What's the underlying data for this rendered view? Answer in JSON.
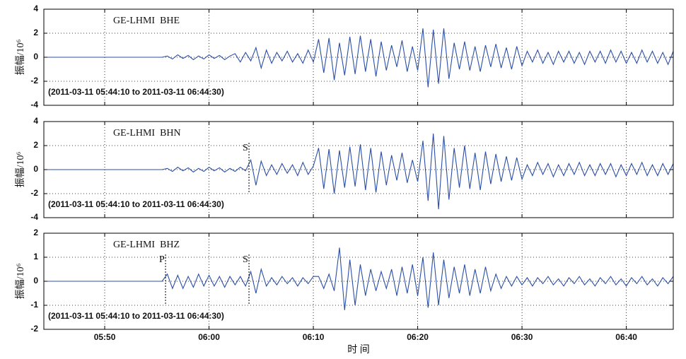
{
  "chart_data": [
    {
      "type": "line",
      "title": "GE-LHMI  BHE",
      "annotation": "(2011-03-11 05:44:10 to 2011-03-11 06:44:30)",
      "ylabel": "振幅/10⁶",
      "color": "#2b4fa6",
      "grid": true,
      "xlim": [
        44.1667,
        104.5
      ],
      "ylim": [
        -4,
        4
      ],
      "yticks": [
        -4,
        -2,
        0,
        2,
        4
      ],
      "xticks": [
        50,
        60,
        70,
        80,
        90,
        100
      ],
      "markers": [],
      "x": [
        44.5,
        45,
        45.5,
        46,
        46.5,
        47,
        47.5,
        48,
        48.5,
        49,
        49.5,
        50,
        50.5,
        51,
        51.5,
        52,
        52.5,
        53,
        53.5,
        54,
        54.5,
        55,
        55.5,
        56,
        56.5,
        57,
        57.5,
        58,
        58.5,
        59,
        59.5,
        60,
        60.5,
        61,
        61.5,
        62,
        62.5,
        63,
        63.5,
        64,
        64.5,
        65,
        65.5,
        66,
        66.5,
        67,
        67.5,
        68,
        68.5,
        69,
        69.5,
        70,
        70.5,
        71,
        71.5,
        72,
        72.5,
        73,
        73.5,
        74,
        74.5,
        75,
        75.5,
        76,
        76.5,
        77,
        77.5,
        78,
        78.5,
        79,
        79.5,
        80,
        80.5,
        81,
        81.5,
        82,
        82.5,
        83,
        83.5,
        84,
        84.5,
        85,
        85.5,
        86,
        86.5,
        87,
        87.5,
        88,
        88.5,
        89,
        89.5,
        90,
        90.5,
        91,
        91.5,
        92,
        92.5,
        93,
        93.5,
        94,
        94.5,
        95,
        95.5,
        96,
        96.5,
        97,
        97.5,
        98,
        98.5,
        99,
        99.5,
        100,
        100.5,
        101,
        101.5,
        102,
        102.5,
        103,
        103.5,
        104,
        104.5
      ],
      "values": [
        0,
        0,
        0,
        0,
        0,
        0,
        0,
        0,
        0,
        0,
        0,
        0,
        0,
        0,
        0,
        0,
        0,
        0,
        0,
        0,
        0,
        0,
        0,
        0.1,
        -0.15,
        0.2,
        -0.1,
        0.15,
        -0.2,
        0.1,
        -0.15,
        0.2,
        -0.1,
        0.15,
        -0.2,
        0.1,
        0.3,
        -0.4,
        0.4,
        -0.3,
        0.8,
        -0.9,
        0.6,
        -0.5,
        0.4,
        -0.3,
        0.5,
        -0.4,
        0.3,
        -0.5,
        0.6,
        -0.4,
        1.5,
        -1.3,
        1.6,
        -1.9,
        1.2,
        -1.5,
        1.7,
        -1.4,
        1.8,
        -1.2,
        1.5,
        -1.6,
        1.3,
        -1.1,
        1.0,
        -0.8,
        1.4,
        -1.2,
        0.9,
        -1.1,
        2.4,
        -2.5,
        2.3,
        -2.2,
        2.4,
        -1.8,
        1.2,
        -1.0,
        1.3,
        -1.1,
        0.9,
        -1.2,
        1.0,
        -0.8,
        1.1,
        -0.9,
        0.8,
        -1.0,
        0.9,
        -0.7,
        0.5,
        -0.4,
        0.6,
        -0.5,
        0.4,
        -0.6,
        0.5,
        -0.4,
        0.5,
        -0.5,
        0.4,
        -0.6,
        0.5,
        -0.4,
        0.5,
        -0.5,
        0.6,
        -0.4,
        0.5,
        -0.5,
        0.4,
        -0.5,
        0.6,
        -0.4,
        0.5,
        -0.5,
        0.4,
        -0.6,
        0.5
      ]
    },
    {
      "type": "line",
      "title": "GE-LHMI  BHN",
      "annotation": "(2011-03-11 05:44:10 to 2011-03-11 06:44:30)",
      "ylabel": "振幅/10⁶",
      "color": "#2b4fa6",
      "grid": true,
      "xlim": [
        44.1667,
        104.5
      ],
      "ylim": [
        -4,
        4
      ],
      "yticks": [
        -4,
        -2,
        0,
        2,
        4
      ],
      "xticks": [
        50,
        60,
        70,
        80,
        90,
        100
      ],
      "markers": [
        {
          "label": "S",
          "x": 63.83
        }
      ],
      "x": [
        44.5,
        45,
        45.5,
        46,
        46.5,
        47,
        47.5,
        48,
        48.5,
        49,
        49.5,
        50,
        50.5,
        51,
        51.5,
        52,
        52.5,
        53,
        53.5,
        54,
        54.5,
        55,
        55.5,
        56,
        56.5,
        57,
        57.5,
        58,
        58.5,
        59,
        59.5,
        60,
        60.5,
        61,
        61.5,
        62,
        62.5,
        63,
        63.5,
        64,
        64.5,
        65,
        65.5,
        66,
        66.5,
        67,
        67.5,
        68,
        68.5,
        69,
        69.5,
        70,
        70.5,
        71,
        71.5,
        72,
        72.5,
        73,
        73.5,
        74,
        74.5,
        75,
        75.5,
        76,
        76.5,
        77,
        77.5,
        78,
        78.5,
        79,
        79.5,
        80,
        80.5,
        81,
        81.5,
        82,
        82.5,
        83,
        83.5,
        84,
        84.5,
        85,
        85.5,
        86,
        86.5,
        87,
        87.5,
        88,
        88.5,
        89,
        89.5,
        90,
        90.5,
        91,
        91.5,
        92,
        92.5,
        93,
        93.5,
        94,
        94.5,
        95,
        95.5,
        96,
        96.5,
        97,
        97.5,
        98,
        98.5,
        99,
        99.5,
        100,
        100.5,
        101,
        101.5,
        102,
        102.5,
        103,
        103.5,
        104,
        104.5
      ],
      "values": [
        0,
        0,
        0,
        0,
        0,
        0,
        0,
        0,
        0,
        0,
        0,
        0,
        0,
        0,
        0,
        0,
        0,
        0,
        0,
        0,
        0,
        0,
        0,
        0.1,
        -0.15,
        0.2,
        -0.1,
        0.15,
        -0.2,
        0.1,
        -0.15,
        0.2,
        -0.1,
        0.15,
        -0.2,
        0.1,
        -0.15,
        0.2,
        -0.1,
        0.8,
        -1.3,
        0.7,
        -0.5,
        0.4,
        -0.4,
        0.5,
        -0.3,
        0.4,
        -0.5,
        0.6,
        -0.4,
        0.3,
        1.8,
        -1.6,
        1.7,
        -2.0,
        1.6,
        -1.5,
        1.9,
        -1.4,
        2.1,
        -1.7,
        1.8,
        -1.9,
        1.5,
        -1.3,
        1.2,
        -0.9,
        1.4,
        -1.1,
        0.8,
        -1.0,
        2.4,
        -2.6,
        3.0,
        -3.3,
        2.8,
        -2.5,
        1.8,
        -1.5,
        2.0,
        -1.6,
        1.4,
        -1.7,
        1.5,
        -1.2,
        1.3,
        -1.0,
        1.1,
        -0.9,
        1.0,
        -0.8,
        0.4,
        -0.5,
        0.6,
        -0.4,
        0.5,
        -0.6,
        0.4,
        -0.5,
        0.5,
        -0.4,
        0.6,
        -0.5,
        0.4,
        -0.5,
        0.5,
        -0.4,
        0.5,
        -0.6,
        0.4,
        -0.5,
        0.5,
        -0.4,
        0.6,
        -0.5,
        0.4,
        -0.5,
        0.5,
        -0.4,
        0.5
      ]
    },
    {
      "type": "line",
      "title": "GE-LHMI  BHZ",
      "annotation": "(2011-03-11 05:44:10 to 2011-03-11 06:44:30)",
      "ylabel": "振幅/10⁶",
      "xlabel": "时 间",
      "color": "#2b4fa6",
      "grid": true,
      "xlim": [
        44.1667,
        104.5
      ],
      "ylim": [
        -2,
        2
      ],
      "yticks": [
        -2,
        -1,
        0,
        1,
        2
      ],
      "xticks": [
        {
          "value": 50,
          "label": "05:50"
        },
        {
          "value": 60,
          "label": "06:00"
        },
        {
          "value": 70,
          "label": "06:10"
        },
        {
          "value": 80,
          "label": "06:20"
        },
        {
          "value": 90,
          "label": "06:30"
        },
        {
          "value": 100,
          "label": "06:40"
        }
      ],
      "markers": [
        {
          "label": "P",
          "x": 55.83
        },
        {
          "label": "S",
          "x": 63.83
        }
      ],
      "x": [
        44.5,
        45,
        45.5,
        46,
        46.5,
        47,
        47.5,
        48,
        48.5,
        49,
        49.5,
        50,
        50.5,
        51,
        51.5,
        52,
        52.5,
        53,
        53.5,
        54,
        54.5,
        55,
        55.5,
        56,
        56.5,
        57,
        57.5,
        58,
        58.5,
        59,
        59.5,
        60,
        60.5,
        61,
        61.5,
        62,
        62.5,
        63,
        63.5,
        64,
        64.5,
        65,
        65.5,
        66,
        66.5,
        67,
        67.5,
        68,
        68.5,
        69,
        69.5,
        70,
        70.5,
        71,
        71.5,
        72,
        72.5,
        73,
        73.5,
        74,
        74.5,
        75,
        75.5,
        76,
        76.5,
        77,
        77.5,
        78,
        78.5,
        79,
        79.5,
        80,
        80.5,
        81,
        81.5,
        82,
        82.5,
        83,
        83.5,
        84,
        84.5,
        85,
        85.5,
        86,
        86.5,
        87,
        87.5,
        88,
        88.5,
        89,
        89.5,
        90,
        90.5,
        91,
        91.5,
        92,
        92.5,
        93,
        93.5,
        94,
        94.5,
        95,
        95.5,
        96,
        96.5,
        97,
        97.5,
        98,
        98.5,
        99,
        99.5,
        100,
        100.5,
        101,
        101.5,
        102,
        102.5,
        103,
        103.5,
        104,
        104.5
      ],
      "values": [
        0,
        0,
        0,
        0,
        0,
        0,
        0,
        0,
        0,
        0,
        0,
        0,
        0,
        0,
        0,
        0,
        0,
        0,
        0,
        0,
        0,
        0,
        0,
        0.3,
        -0.3,
        0.25,
        -0.3,
        0.2,
        -0.25,
        0.3,
        -0.2,
        0.25,
        -0.2,
        0.2,
        -0.25,
        0.2,
        -0.15,
        0.2,
        -0.2,
        0.4,
        -0.5,
        0.5,
        -0.2,
        0.15,
        -0.15,
        0.2,
        -0.1,
        0.15,
        -0.2,
        0.15,
        -0.1,
        0.2,
        0.2,
        -0.3,
        0.3,
        -0.4,
        1.4,
        -1.2,
        0.9,
        -1.0,
        0.7,
        -0.6,
        0.5,
        -0.4,
        0.4,
        -0.3,
        0.5,
        -0.6,
        0.6,
        -0.5,
        0.7,
        -0.6,
        1.0,
        -1.1,
        1.2,
        -1.0,
        0.9,
        -0.7,
        0.6,
        -0.5,
        0.7,
        -0.6,
        0.5,
        -0.5,
        0.6,
        -0.4,
        0.3,
        -0.3,
        0.2,
        -0.2,
        0.2,
        -0.15,
        0.15,
        -0.2,
        0.15,
        -0.1,
        0.2,
        -0.15,
        0.1,
        -0.2,
        0.15,
        -0.1,
        0.2,
        -0.15,
        0.1,
        -0.2,
        0.15,
        -0.1,
        0.2,
        -0.15,
        0.1,
        -0.2,
        0.15,
        -0.1,
        0.2,
        -0.15,
        0.1,
        -0.2,
        0.15,
        -0.1,
        0.2
      ]
    }
  ]
}
